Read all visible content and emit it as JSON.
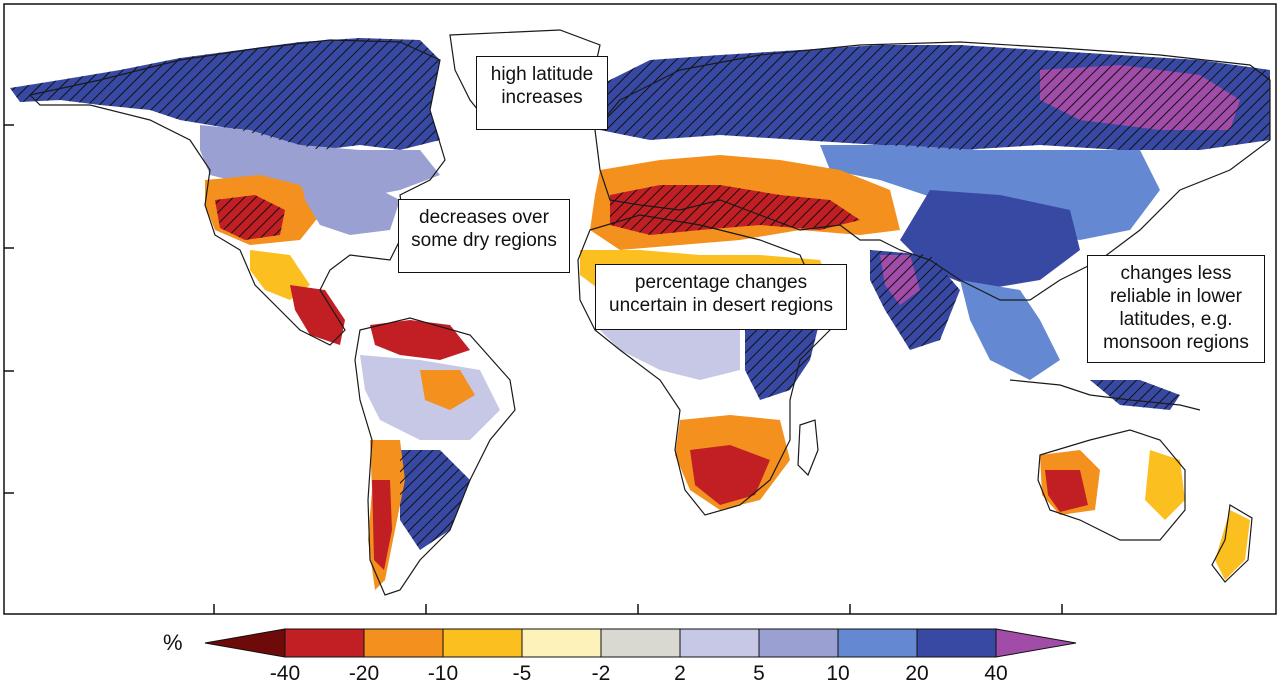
{
  "annotations": {
    "high_latitude": [
      "high latitude",
      "increases"
    ],
    "dry_regions": [
      "decreases over",
      "some dry regions"
    ],
    "desert": [
      "percentage changes",
      "uncertain in desert regions"
    ],
    "monsoon": [
      "changes less",
      "reliable in lower",
      "latitudes, e.g.",
      "monsoon regions"
    ]
  },
  "legend": {
    "unit": "%",
    "tick_labels": [
      "-40",
      "-20",
      "-10",
      "-5",
      "-2",
      "2",
      "5",
      "10",
      "20",
      "40"
    ],
    "colors": [
      "#6e0a0a",
      "#c21f24",
      "#f3901e",
      "#fbbf1f",
      "#fdf2b9",
      "#d9d9d2",
      "#c6c8e6",
      "#9aa1d2",
      "#6489d2",
      "#3849a4",
      "#a14ca8"
    ]
  },
  "palette": {
    "strong_dry": "#c21f24",
    "dry": "#f3901e",
    "mild_dry": "#fbbf1f",
    "slight_dry": "#fdf2b9",
    "neutral": "#d9d9d2",
    "slight_wet": "#c6c8e6",
    "mild_wet": "#9aa1d2",
    "wet": "#6489d2",
    "strong_wet": "#3849a4",
    "extreme_wet": "#a14ca8",
    "coast": "#1a1a1a"
  }
}
